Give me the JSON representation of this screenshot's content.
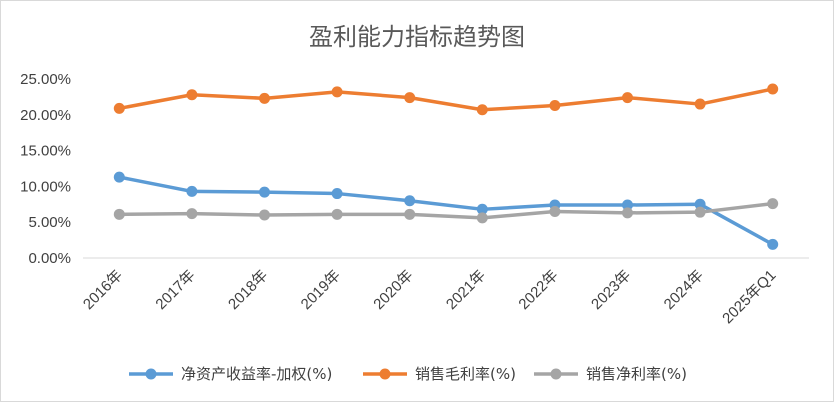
{
  "chart_data": {
    "type": "line",
    "title": "盈利能力指标趋势图",
    "categories": [
      "2016年",
      "2017年",
      "2018年",
      "2019年",
      "2020年",
      "2021年",
      "2022年",
      "2023年",
      "2024年",
      "2025年Q1"
    ],
    "ylim": [
      0,
      25
    ],
    "yticks": [
      "0.00%",
      "5.00%",
      "10.00%",
      "15.00%",
      "20.00%",
      "25.00%"
    ],
    "ytick_values": [
      0,
      5,
      10,
      15,
      20,
      25
    ],
    "grid": false,
    "legend_position": "bottom",
    "series": [
      {
        "name": "净资产收益率-加权(%)",
        "color": "#5b9bd5",
        "values": [
          11.3,
          9.3,
          9.2,
          9.0,
          8.0,
          6.8,
          7.4,
          7.4,
          7.5,
          1.9
        ]
      },
      {
        "name": "销售毛利率(%)",
        "color": "#ed7d31",
        "values": [
          20.9,
          22.8,
          22.3,
          23.2,
          22.4,
          20.7,
          21.3,
          22.4,
          21.5,
          23.6
        ]
      },
      {
        "name": "销售净利率(%)",
        "color": "#a5a5a5",
        "values": [
          6.1,
          6.2,
          6.0,
          6.1,
          6.1,
          5.6,
          6.5,
          6.3,
          6.4,
          7.6
        ]
      }
    ]
  }
}
